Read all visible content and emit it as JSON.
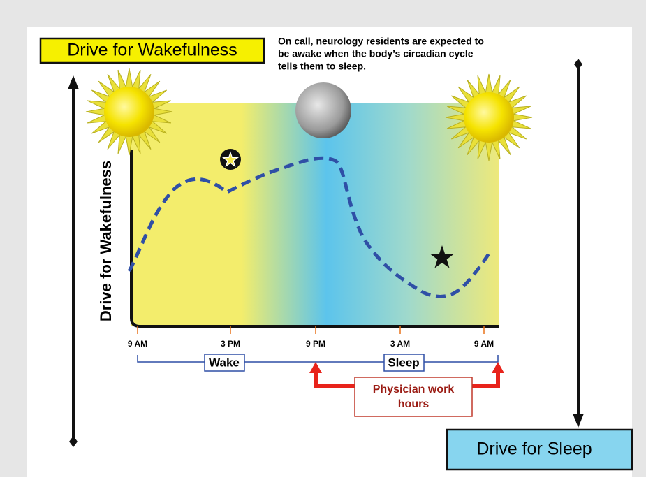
{
  "wake_box": "Drive for Wakefulness",
  "annotation": [
    "On call,  neurology residents are expected  to",
    "be awake when the body’s circadian cycle",
    "tells them to sleep."
  ],
  "y_axis_label": "Drive for Wakefulness",
  "x_ticks": [
    "9 AM",
    "3 PM",
    "9 PM",
    "3 AM",
    "9 AM"
  ],
  "periods": [
    "Wake",
    "Sleep"
  ],
  "work_hours": [
    "Physician work",
    "hours"
  ],
  "sleep_box": "Drive for Sleep"
}
